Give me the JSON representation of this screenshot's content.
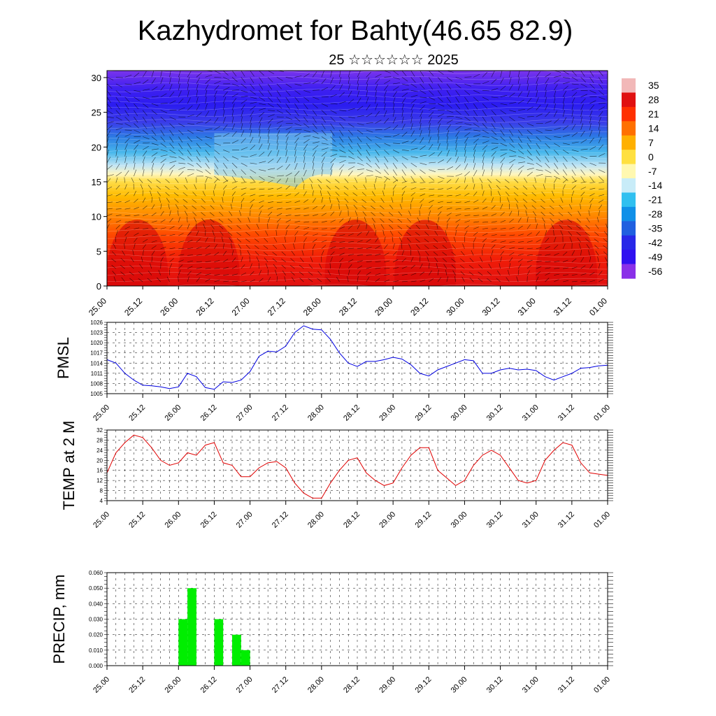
{
  "title": "Kazhydromet for Bahty(46.65 82.9)",
  "subtitle": "25 ☆☆☆☆☆☆ 2025",
  "time_labels": [
    "25.00",
    "25.12",
    "26.00",
    "26.12",
    "27.00",
    "27.12",
    "28.00",
    "28.12",
    "29.00",
    "29.12",
    "30.00",
    "30.12",
    "31.00",
    "31.12",
    "01.00"
  ],
  "chart_data": [
    {
      "type": "heatmap",
      "xlabel": "",
      "ylabel": "",
      "xlim": [
        0,
        14
      ],
      "ylim": [
        0,
        31
      ],
      "y_ticks": [
        0,
        5,
        10,
        15,
        20,
        25,
        30
      ],
      "colorbar": {
        "labels": [
          "35",
          "28",
          "21",
          "14",
          "7",
          "0",
          "-7",
          "-14",
          "-21",
          "-28",
          "-35",
          "-42",
          "-49",
          "-56"
        ],
        "colors": [
          "#f2b8b8",
          "#e01010",
          "#ff3000",
          "#ff7000",
          "#ffb000",
          "#ffe040",
          "#fff8b0",
          "#c8ecf8",
          "#30c0f0",
          "#1090e8",
          "#2060e0",
          "#2828e8",
          "#3010f0",
          "#8a30e8"
        ]
      },
      "overlay": "wind barbs",
      "grid": false
    },
    {
      "type": "line",
      "ylabel": "PMSL",
      "xlim": [
        0,
        14
      ],
      "ylim": [
        1005,
        1026
      ],
      "y_ticks": [
        1005,
        1008,
        1011,
        1014,
        1017,
        1020,
        1023,
        1026
      ],
      "x": [
        0,
        0.25,
        0.5,
        0.75,
        1,
        1.25,
        1.5,
        1.75,
        2,
        2.25,
        2.5,
        2.75,
        3,
        3.25,
        3.5,
        3.75,
        4,
        4.25,
        4.5,
        4.75,
        5,
        5.25,
        5.5,
        5.75,
        6,
        6.25,
        6.5,
        6.75,
        7,
        7.25,
        7.5,
        7.75,
        8,
        8.25,
        8.5,
        8.75,
        9,
        9.25,
        9.5,
        9.75,
        10,
        10.25,
        10.5,
        10.75,
        11,
        11.25,
        11.5,
        11.75,
        12,
        12.25,
        12.5,
        12.75,
        13,
        13.25,
        13.5,
        13.75,
        14
      ],
      "series": [
        {
          "color": "#0000e0",
          "values": [
            1015,
            1014,
            1011,
            1009,
            1007.5,
            1007.3,
            1007,
            1006.5,
            1007,
            1011,
            1010,
            1006.8,
            1006.3,
            1008.5,
            1008.3,
            1009,
            1011.5,
            1016,
            1017.5,
            1017.3,
            1019,
            1023,
            1025,
            1024,
            1023.8,
            1021,
            1017,
            1014,
            1013,
            1014.5,
            1014.5,
            1015,
            1015.7,
            1015.2,
            1013.5,
            1011,
            1010.2,
            1012,
            1013,
            1014,
            1015,
            1014.7,
            1011,
            1011,
            1012,
            1012.5,
            1012,
            1012.2,
            1011.8,
            1010,
            1009,
            1010,
            1011,
            1012.5,
            1012.7,
            1013.2,
            1013.4
          ]
        }
      ],
      "grid": true
    },
    {
      "type": "line",
      "ylabel": "TEMP at 2 M",
      "xlim": [
        0,
        14
      ],
      "ylim": [
        4,
        32
      ],
      "y_ticks": [
        4,
        8,
        12,
        16,
        20,
        24,
        28,
        32
      ],
      "x": [
        0,
        0.25,
        0.5,
        0.75,
        1,
        1.25,
        1.5,
        1.75,
        2,
        2.25,
        2.5,
        2.75,
        3,
        3.25,
        3.5,
        3.75,
        4,
        4.25,
        4.5,
        4.75,
        5,
        5.25,
        5.5,
        5.75,
        6,
        6.25,
        6.5,
        6.75,
        7,
        7.25,
        7.5,
        7.75,
        8,
        8.25,
        8.5,
        8.75,
        9,
        9.25,
        9.5,
        9.75,
        10,
        10.25,
        10.5,
        10.75,
        11,
        11.25,
        11.5,
        11.75,
        12,
        12.25,
        12.5,
        12.75,
        13,
        13.25,
        13.5,
        13.75,
        14
      ],
      "series": [
        {
          "color": "#e00000",
          "values": [
            15,
            23,
            27,
            30,
            29,
            25,
            20,
            18,
            19,
            23,
            22,
            26,
            27,
            19,
            18,
            13.5,
            13.5,
            17,
            19,
            19.5,
            17,
            11,
            7,
            5,
            5,
            11,
            16,
            20,
            21,
            15,
            12,
            10,
            11,
            17,
            22,
            25,
            25,
            16,
            13,
            10,
            12,
            18,
            22,
            24,
            22,
            17,
            12,
            11,
            12,
            20,
            24,
            27,
            26,
            19,
            15,
            14.5,
            14
          ]
        }
      ],
      "grid": true
    },
    {
      "type": "bar",
      "ylabel": "PRECIP, mm",
      "xlim": [
        0,
        14
      ],
      "ylim": [
        0,
        0.06
      ],
      "y_ticks": [
        "0.000",
        "0.010",
        "0.020",
        "0.030",
        "0.040",
        "0.050",
        "0.060"
      ],
      "bars": [
        {
          "x": 2.125,
          "value": 0.03
        },
        {
          "x": 2.375,
          "value": 0.05
        },
        {
          "x": 3.125,
          "value": 0.03
        },
        {
          "x": 3.625,
          "value": 0.02
        },
        {
          "x": 3.875,
          "value": 0.01
        }
      ],
      "bar_color": "#00ee00",
      "grid": true
    }
  ]
}
